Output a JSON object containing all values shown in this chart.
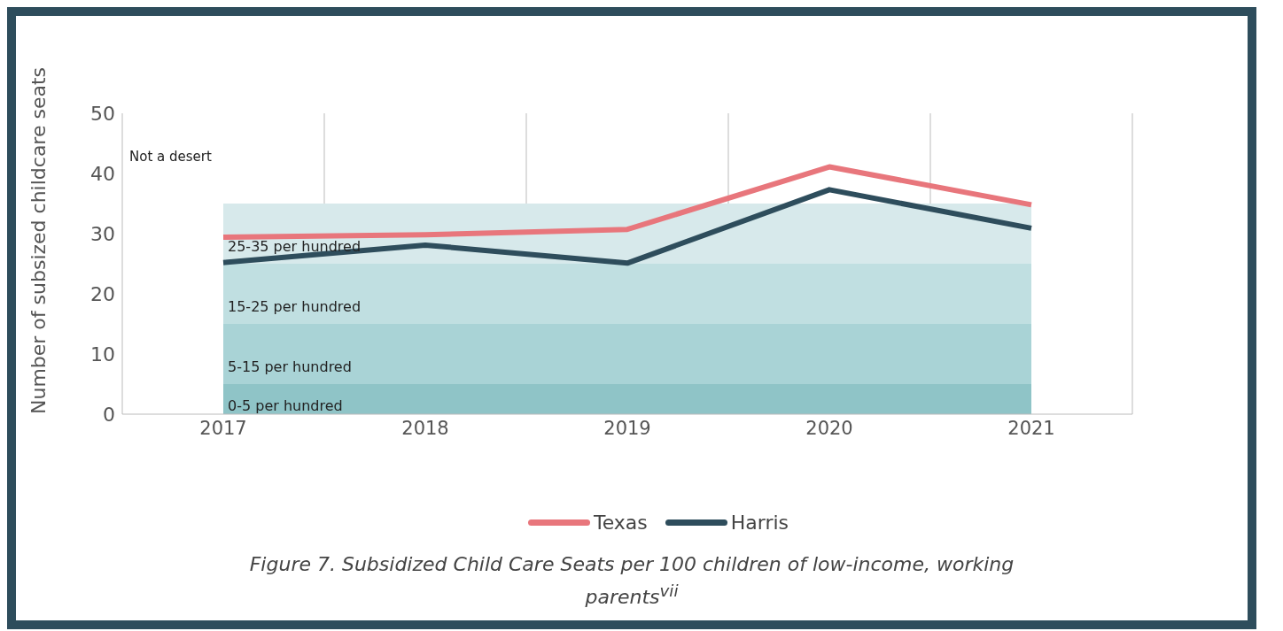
{
  "chart_data": {
    "type": "line",
    "ylabel": "Number of subsized childcare seats",
    "categories": [
      "2017",
      "2018",
      "2019",
      "2020",
      "2021"
    ],
    "series": [
      {
        "name": "Texas",
        "color": "#e8767c",
        "values": [
          29.4,
          29.8,
          30.7,
          41.1,
          34.8
        ]
      },
      {
        "name": "Harris",
        "color": "#2e4d5c",
        "values": [
          25.2,
          28.1,
          25.1,
          37.3,
          30.9
        ]
      }
    ],
    "ylim": [
      0,
      50
    ],
    "yticks": [
      0,
      10,
      20,
      30,
      40,
      50
    ],
    "bands": [
      {
        "axis": "y",
        "from": 0,
        "to": 5,
        "label": "0-5 per hundred",
        "color": "#8fc4c7"
      },
      {
        "axis": "y",
        "from": 5,
        "to": 15,
        "label": "5-15 per hundred",
        "color": "#a9d3d6"
      },
      {
        "axis": "y",
        "from": 15,
        "to": 25,
        "label": "15-25 per hundred",
        "color": "#c0dfe1"
      },
      {
        "axis": "y",
        "from": 25,
        "to": 35,
        "label": "25-35 per hundred",
        "color": "#d7e9eb"
      }
    ],
    "annotations": [
      "Not a desert",
      "Figure 7. Subsidized Child Care Seats per 100 children of low-income, working parents$^{vii}$"
    ],
    "grid": "x",
    "legend": "bottom",
    "marker": "none",
    "line_style": "solid"
  }
}
